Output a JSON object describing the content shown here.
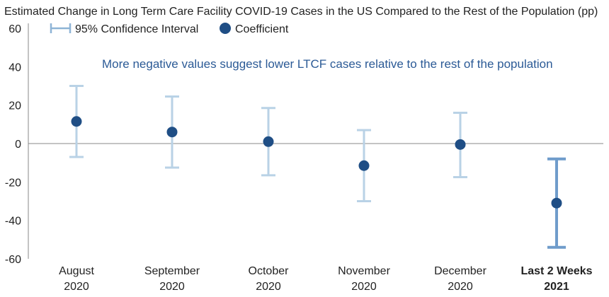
{
  "chart_data": {
    "type": "scatter",
    "title": "Estimated Change in Long Term Care Facility COVID-19 Cases in the US Compared to the Rest of the Population (pp)",
    "annotation": "More negative values suggest lower LTCF cases relative to the rest of the population",
    "legend": {
      "ci_label": "95% Confidence Interval",
      "coef_label": "Coefficient",
      "placement": "top-left"
    },
    "ylim": [
      -60,
      60
    ],
    "yticks": [
      "60",
      "40",
      "20",
      "0",
      "-20",
      "-40",
      "-60"
    ],
    "ytick_values": [
      60,
      40,
      20,
      0,
      -20,
      -40,
      -60
    ],
    "grid": false,
    "categories": [
      {
        "line1": "August",
        "line2": "2020",
        "bold": false
      },
      {
        "line1": "September",
        "line2": "2020",
        "bold": false
      },
      {
        "line1": "October",
        "line2": "2020",
        "bold": false
      },
      {
        "line1": "November",
        "line2": "2020",
        "bold": false
      },
      {
        "line1": "December",
        "line2": "2020",
        "bold": false
      },
      {
        "line1": "Last 2 Weeks",
        "line2": "2021",
        "bold": true
      }
    ],
    "series": [
      {
        "name": "Coefficient",
        "values": [
          11.5,
          6,
          1,
          -11.5,
          -0.5,
          -31
        ]
      },
      {
        "name": "95% Confidence Interval",
        "lower": [
          -7,
          -12.5,
          -16.5,
          -30,
          -17.5,
          -54
        ],
        "upper": [
          30,
          24.5,
          18.5,
          7,
          16,
          -8
        ]
      }
    ],
    "colors": {
      "point": "#1f4e85",
      "ci": "#b9d2e6",
      "ci_highlight": "#6f9ccb",
      "axis": "#8a8a8a",
      "annotation": "#2b5a96"
    }
  }
}
